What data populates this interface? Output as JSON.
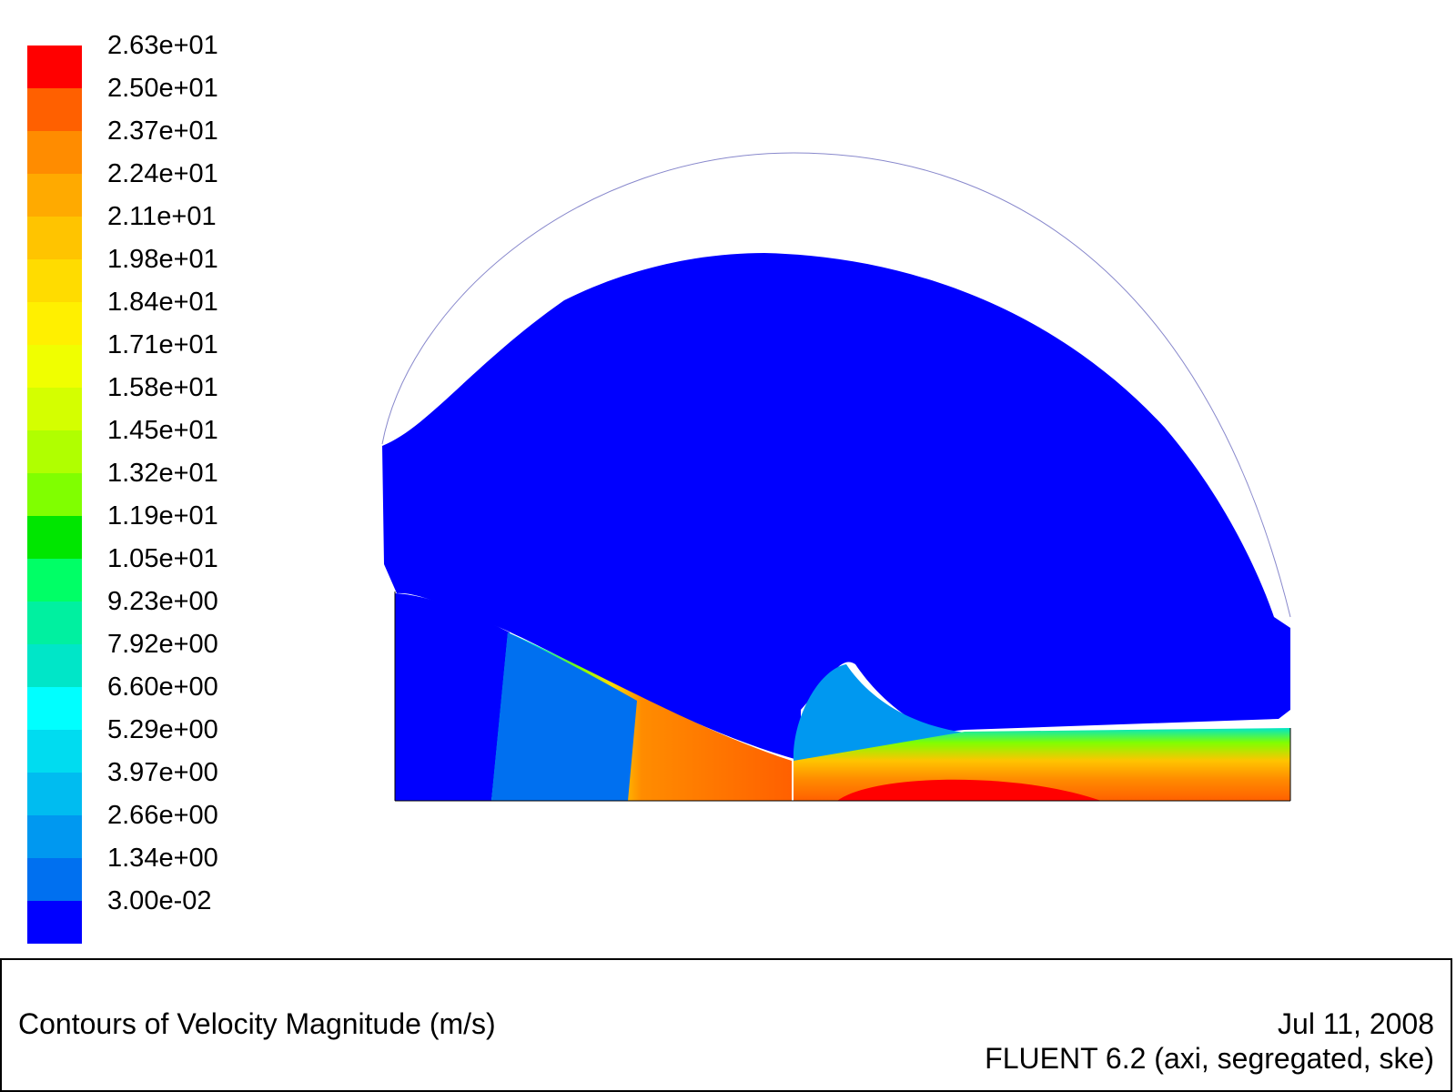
{
  "chart_data": {
    "type": "heatmap",
    "title": "Contours of Velocity Magnitude (m/s)",
    "colorbar": {
      "labels": [
        "2.63e+01",
        "2.50e+01",
        "2.37e+01",
        "2.24e+01",
        "2.11e+01",
        "1.98e+01",
        "1.84e+01",
        "1.71e+01",
        "1.58e+01",
        "1.45e+01",
        "1.32e+01",
        "1.19e+01",
        "1.05e+01",
        "9.23e+00",
        "7.92e+00",
        "6.60e+00",
        "5.29e+00",
        "3.97e+00",
        "2.66e+00",
        "1.34e+00",
        "3.00e-02"
      ],
      "colors": [
        "#ff0000",
        "#ff6000",
        "#ff8c00",
        "#ffaa00",
        "#ffc400",
        "#ffdc00",
        "#fff000",
        "#f0ff00",
        "#d4ff00",
        "#b0ff00",
        "#80ff00",
        "#00e600",
        "#00ff66",
        "#00f0a0",
        "#00e6c8",
        "#00ffff",
        "#00dcf0",
        "#00bcf0",
        "#0098f0",
        "#0070f0",
        "#0000ff"
      ]
    }
  },
  "caption": {
    "title": "Contours of Velocity Magnitude (m/s)",
    "date": "Jul 11, 2008",
    "version": "FLUENT 6.2 (axi, segregated, ske)"
  }
}
